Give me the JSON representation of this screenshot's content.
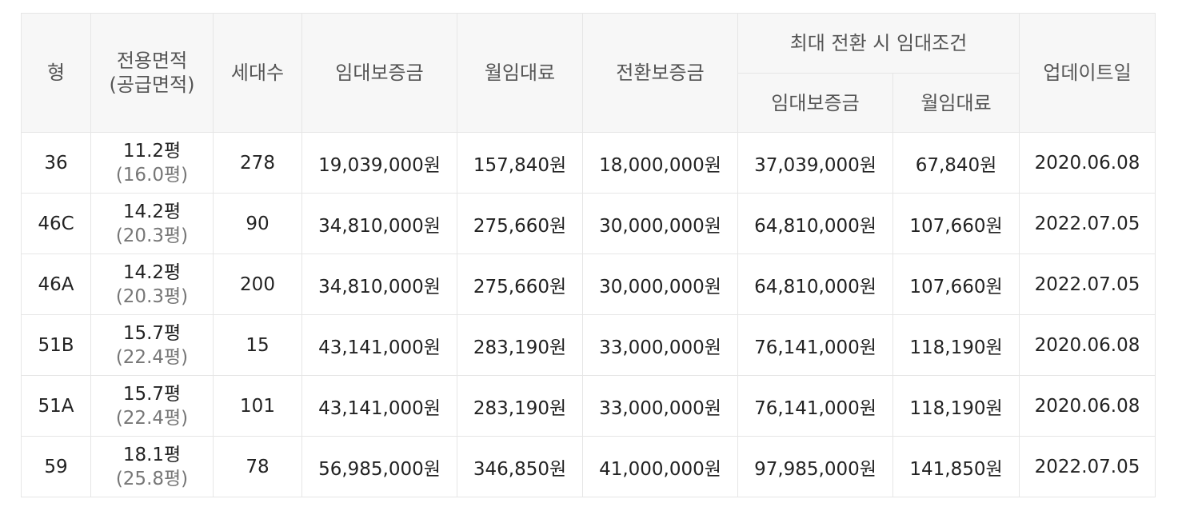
{
  "table": {
    "headers": {
      "type": "형",
      "area_line1": "전용면적",
      "area_line2": "(공급면적)",
      "households": "세대수",
      "deposit": "임대보증금",
      "monthly": "월임대료",
      "conversion_deposit": "전환보증금",
      "max_conversion_group": "최대 전환 시 임대조건",
      "max_deposit": "임대보증금",
      "max_monthly": "월임대료",
      "updated": "업데이트일"
    },
    "rows": [
      {
        "type": "36",
        "area": "11.2평",
        "supply_area": "(16.0평)",
        "households": "278",
        "deposit": "19,039,000원",
        "monthly": "157,840원",
        "conversion_deposit": "18,000,000원",
        "max_deposit": "37,039,000원",
        "max_monthly": "67,840원",
        "updated": "2020.06.08"
      },
      {
        "type": "46C",
        "area": "14.2평",
        "supply_area": "(20.3평)",
        "households": "90",
        "deposit": "34,810,000원",
        "monthly": "275,660원",
        "conversion_deposit": "30,000,000원",
        "max_deposit": "64,810,000원",
        "max_monthly": "107,660원",
        "updated": "2022.07.05"
      },
      {
        "type": "46A",
        "area": "14.2평",
        "supply_area": "(20.3평)",
        "households": "200",
        "deposit": "34,810,000원",
        "monthly": "275,660원",
        "conversion_deposit": "30,000,000원",
        "max_deposit": "64,810,000원",
        "max_monthly": "107,660원",
        "updated": "2022.07.05"
      },
      {
        "type": "51B",
        "area": "15.7평",
        "supply_area": "(22.4평)",
        "households": "15",
        "deposit": "43,141,000원",
        "monthly": "283,190원",
        "conversion_deposit": "33,000,000원",
        "max_deposit": "76,141,000원",
        "max_monthly": "118,190원",
        "updated": "2020.06.08"
      },
      {
        "type": "51A",
        "area": "15.7평",
        "supply_area": "(22.4평)",
        "households": "101",
        "deposit": "43,141,000원",
        "monthly": "283,190원",
        "conversion_deposit": "33,000,000원",
        "max_deposit": "76,141,000원",
        "max_monthly": "118,190원",
        "updated": "2020.06.08"
      },
      {
        "type": "59",
        "area": "18.1평",
        "supply_area": "(25.8평)",
        "households": "78",
        "deposit": "56,985,000원",
        "monthly": "346,850원",
        "conversion_deposit": "41,000,000원",
        "max_deposit": "97,985,000원",
        "max_monthly": "141,850원",
        "updated": "2022.07.05"
      }
    ]
  }
}
